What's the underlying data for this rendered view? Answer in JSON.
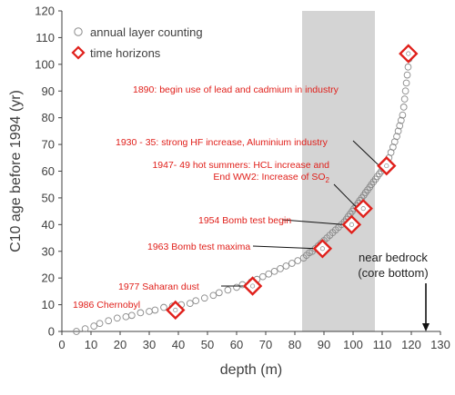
{
  "chart_data": {
    "type": "scatter",
    "xlabel": "depth (m)",
    "ylabel": "C10 age before 1994 (yr)",
    "xlim": [
      0,
      130
    ],
    "ylim": [
      0,
      120
    ],
    "xticks": [
      0,
      10,
      20,
      30,
      40,
      50,
      60,
      70,
      80,
      90,
      100,
      110,
      120,
      130
    ],
    "yticks": [
      0,
      10,
      20,
      30,
      40,
      50,
      60,
      70,
      80,
      90,
      100,
      110,
      120
    ],
    "grid": false,
    "legend_position": "top-left",
    "shaded_band": {
      "x_from": 82.5,
      "x_to": 107.5,
      "color": "#d4d4d4"
    },
    "colors": {
      "counting": "#8a8a8a",
      "horizon": "#e0201b",
      "axis": "#404040"
    },
    "series": [
      {
        "name": "annual layer counting",
        "marker": "circle",
        "x": [
          5,
          8,
          11,
          13,
          16,
          19,
          22,
          24,
          27,
          30,
          32,
          35,
          38,
          41,
          44,
          46,
          49,
          52,
          54,
          57,
          60,
          62,
          65,
          67,
          69,
          71,
          73,
          75,
          77,
          79,
          81,
          83,
          84,
          85,
          86,
          87,
          88,
          89,
          90,
          91,
          92,
          93,
          94,
          95,
          96,
          97,
          97.7,
          98.3,
          99,
          99.7,
          100.3,
          101,
          101.7,
          102.3,
          103,
          103.7,
          104.3,
          105,
          105.7,
          106.3,
          107,
          107.7,
          108.3,
          109,
          109.7,
          110.3,
          111,
          111.7,
          112.3,
          113,
          113.7,
          114.3,
          115,
          115.5,
          116,
          116.5,
          117,
          117.4,
          117.7,
          118,
          118.3,
          118.6,
          118.9,
          119.2,
          119.5
        ],
        "y": [
          0,
          1,
          2,
          3,
          4,
          5,
          5.5,
          6,
          7,
          7.5,
          8,
          9,
          9.5,
          10,
          10.5,
          11.5,
          12.5,
          13.5,
          14.5,
          15.5,
          16.5,
          17.5,
          18.5,
          19.5,
          20.5,
          21.5,
          22.5,
          23.5,
          24.5,
          25.5,
          26.5,
          27.5,
          28.5,
          29.5,
          30,
          31,
          32,
          33,
          34,
          35,
          36,
          37,
          38,
          39,
          40,
          41,
          42,
          43,
          44,
          45,
          46,
          47,
          48,
          49,
          50,
          51,
          52,
          53,
          54,
          55,
          56,
          57,
          58,
          59,
          60,
          61,
          62,
          63,
          65,
          67,
          69,
          71,
          73,
          75,
          77,
          79,
          81,
          84,
          87,
          90,
          93,
          96,
          99,
          102,
          104
        ]
      },
      {
        "name": "time horizons",
        "marker": "diamond",
        "x": [
          39,
          65.5,
          89.5,
          99.5,
          103.5,
          111.5,
          119
        ],
        "y": [
          8,
          17,
          31,
          40,
          46,
          62,
          104
        ]
      }
    ],
    "annotations": [
      {
        "text": "1986 Chernobyl",
        "x": 39,
        "y": 8
      },
      {
        "text": "1977 Saharan dust",
        "x": 65.5,
        "y": 17
      },
      {
        "text": "1963 Bomb test maxima",
        "x": 89.5,
        "y": 31
      },
      {
        "text": "1954 Bomb test begin",
        "x": 99.5,
        "y": 40
      },
      {
        "text_line1": "1947- 49 hot summers: HCL increase and",
        "text_line2": "End WW2: Increase of SO",
        "subscript": "2",
        "x": 103.5,
        "y": 46
      },
      {
        "text": "1930 - 35: strong HF increase, Aluminium industry",
        "x": 111.5,
        "y": 62
      },
      {
        "text": "1890: begin use of lead and cadmium in industry",
        "x": 119,
        "y": 104
      }
    ],
    "bedrock_note": {
      "line1": "near bedrock",
      "line2": "(core bottom)",
      "x": 125
    }
  }
}
